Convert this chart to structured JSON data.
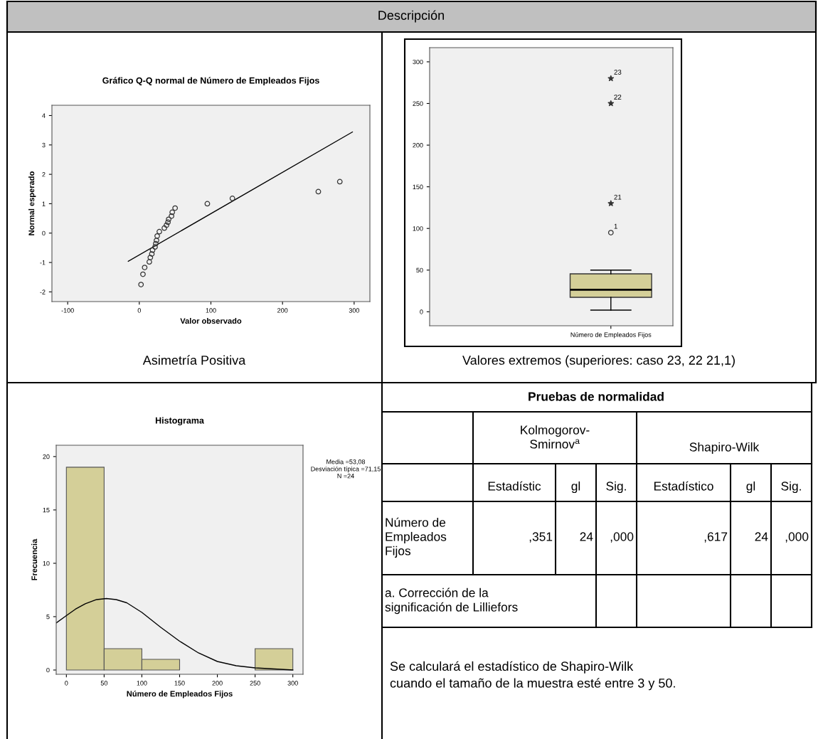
{
  "chart_data": [
    {
      "type": "scatter",
      "title": "Gráfico Q-Q normal de Número de Empleados Fijos",
      "xlabel": "Valor observado",
      "ylabel": "Normal esperado",
      "annotations": [
        "Descripción",
        "Asimetría Positiva"
      ],
      "xlim": [
        -122,
        322
      ],
      "ylim": [
        -2.33,
        4.35
      ],
      "xticks": [
        -100,
        0,
        100,
        200,
        300
      ],
      "yticks": [
        -2,
        -1,
        0,
        1,
        2,
        3,
        4
      ],
      "grid": false,
      "marker": "circle",
      "series": [
        {
          "type": "scatter",
          "color": "#333333",
          "x": [
            2.4,
            5.1,
            7.5,
            14,
            15.4,
            17.5,
            18.5,
            22,
            23,
            24,
            25,
            28,
            35,
            38,
            40,
            41,
            45,
            46,
            50,
            95,
            130,
            250,
            280
          ],
          "values": [
            -1.75,
            -1.4,
            -1.17,
            -0.98,
            -0.83,
            -0.71,
            -0.58,
            -0.47,
            -0.36,
            -0.25,
            -0.1,
            0.05,
            0.17,
            0.27,
            0.37,
            0.47,
            0.58,
            0.71,
            0.85,
            1.0,
            1.18,
            1.41,
            1.75
          ]
        },
        {
          "type": "line",
          "marker": "none",
          "color": "#000000",
          "x": [
            -15.4,
            297.6
          ],
          "values": [
            -0.96,
            3.44
          ]
        }
      ]
    },
    {
      "type": "box",
      "categories": [
        "Número de Empleados Fijos"
      ],
      "annotations": [
        "Valores extremos (superiores: caso 23, 22 21,1)",
        "1",
        "21",
        "22",
        "23"
      ],
      "ylim": [
        -16.8,
        317
      ],
      "yticks": [
        0,
        50,
        100,
        150,
        200,
        250,
        300
      ],
      "grid": false,
      "series": [
        {
          "type": "box",
          "color": "#d4cf98",
          "boxes": [
            {
              "low": 2,
              "q1": 17.3,
              "median": 26.4,
              "q3": 45.5,
              "high": 50
            }
          ]
        },
        {
          "type": "scatter",
          "marker": "circle",
          "color": "#333333",
          "x": [
            "Número de Empleados Fijos"
          ],
          "values": [
            95
          ]
        },
        {
          "type": "scatter",
          "marker": "star",
          "color": "#333333",
          "x": [
            "Número de Empleados Fijos",
            "Número de Empleados Fijos",
            "Número de Empleados Fijos"
          ],
          "values": [
            130,
            250,
            280
          ]
        }
      ]
    },
    {
      "type": "histogram",
      "title": "Histograma",
      "xlabel": "Número de Empleados Fijos",
      "ylabel": "Frecuencia",
      "annotations": [
        "Media =53,08",
        "Desviación típica =71,15",
        "N =24"
      ],
      "bins": [
        0,
        50,
        100,
        150,
        200,
        250,
        300
      ],
      "xlim": [
        -13.5,
        313.5
      ],
      "ylim": [
        -0.4,
        21.06
      ],
      "xticks": [
        0,
        50,
        100,
        150,
        200,
        250,
        300
      ],
      "yticks": [
        0,
        5,
        10,
        15,
        20
      ],
      "grid": false,
      "series": [
        {
          "type": "histogram",
          "color": "#d4cf98",
          "values": [
            19,
            2,
            1,
            0,
            0,
            2
          ]
        },
        {
          "type": "line",
          "marker": "none",
          "color": "#000000",
          "x": [
            -13.5,
            0,
            12,
            25,
            40,
            53,
            66,
            80,
            100,
            125,
            150,
            175,
            200,
            225,
            250,
            275,
            300
          ],
          "values": [
            4.4,
            5.1,
            5.7,
            6.2,
            6.6,
            6.7,
            6.6,
            6.3,
            5.4,
            4.0,
            2.7,
            1.6,
            0.8,
            0.4,
            0.2,
            0.1,
            0.0
          ]
        }
      ]
    },
    {
      "type": "other",
      "title": "Pruebas de normalidad",
      "annotations": [
        "Kolmogorov-\nSmirnov$^{a}$",
        "Shapiro-Wilk",
        "Estadístic",
        "gl",
        "Sig.",
        "Estadístico",
        "gl",
        "Sig.",
        "Número de\nEmpleados\nFijos",
        ",351",
        "24",
        ",000",
        ",617",
        "24",
        ",000",
        "a. Corrección de la\nsignificación de Lilliefors",
        "Se calculará el estadístico de Shapiro-Wilk\ncuando el tamaño de la muestra esté entre 3 y 50."
      ]
    }
  ]
}
